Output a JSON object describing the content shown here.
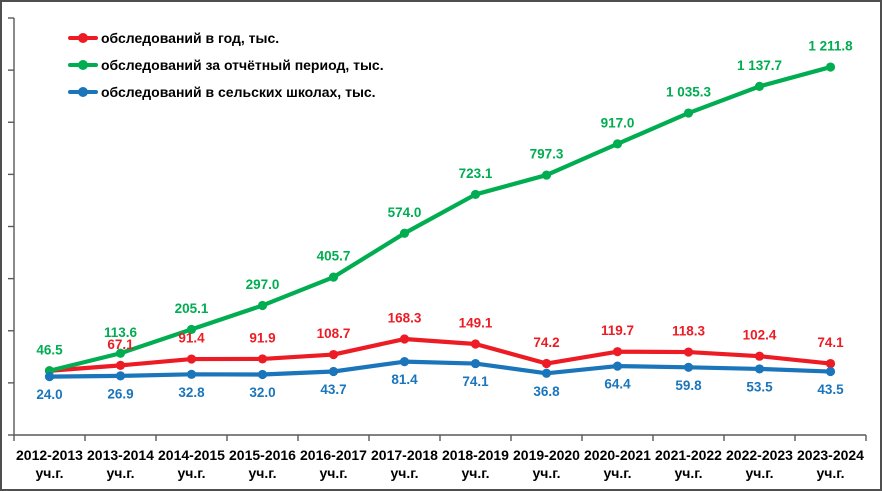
{
  "chart_data": {
    "type": "line",
    "title": "",
    "categories": [
      "2012-2013",
      "2013-2014",
      "2014-2015",
      "2015-2016",
      "2016-2017",
      "2017-2018",
      "2018-2019",
      "2019-2020",
      "2020-2021",
      "2021-2022",
      "2022-2023",
      "2023-2024"
    ],
    "category_suffix": "уч.г.",
    "ylim": [
      -200,
      1400
    ],
    "y_tick_step": 200,
    "y_tick_labels_visible": false,
    "grid": false,
    "legend_position": "top-left",
    "axis_color": "#595959",
    "border_color": "#4f4f4f",
    "series": [
      {
        "name": "обследований в год, тыс.",
        "color": "#ed1c24",
        "label_position": "above",
        "values": [
          46.5,
          67.1,
          91.4,
          91.9,
          108.7,
          168.3,
          149.1,
          74.2,
          119.7,
          118.3,
          102.4,
          74.1
        ],
        "labels": [
          null,
          "67.1",
          "91.4",
          "91.9",
          "108.7",
          "168.3",
          "149.1",
          "74.2",
          "119.7",
          "118.3",
          "102.4",
          "74.1"
        ]
      },
      {
        "name": "обследований за отчётный период, тыс.",
        "color": "#00ad51",
        "label_position": "above",
        "values": [
          46.5,
          113.6,
          205.1,
          297.0,
          405.7,
          574.0,
          723.1,
          797.3,
          917.0,
          1035.3,
          1137.7,
          1211.8
        ],
        "labels": [
          "46.5",
          "113.6",
          "205.1",
          "297.0",
          "405.7",
          "574.0",
          "723.1",
          "797.3",
          "917.0",
          "1 035.3",
          "1 137.7",
          "1 211.8"
        ]
      },
      {
        "name": "обследований в сельских школах, тыс.",
        "color": "#1b75bb",
        "label_position": "below",
        "values": [
          24.0,
          26.9,
          32.8,
          32.0,
          43.7,
          81.4,
          74.1,
          36.8,
          64.4,
          59.8,
          53.5,
          43.5
        ],
        "labels": [
          "24.0",
          "26.9",
          "32.8",
          "32.0",
          "43.7",
          "81.4",
          "74.1",
          "36.8",
          "64.4",
          "59.8",
          "53.5",
          "43.5"
        ]
      }
    ]
  }
}
